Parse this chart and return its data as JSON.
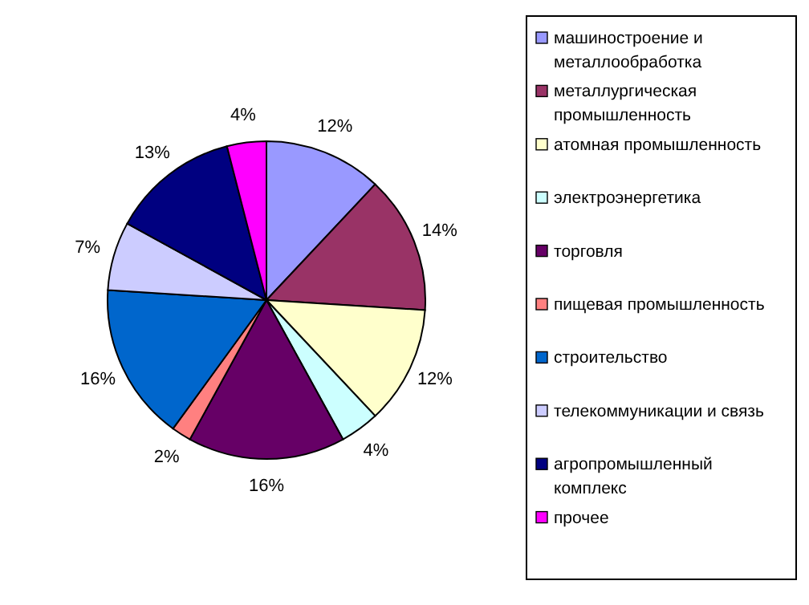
{
  "chart_data": {
    "type": "pie",
    "categories": [
      "машиностроение и металлообработка",
      "металлургическая промышленность",
      "атомная промышленность",
      "электроэнергетика",
      "торговля",
      "пищевая промышленность",
      "строительство",
      "телекоммуникации и связь",
      "агропромышленный комплекс",
      "прочее"
    ],
    "values": [
      12,
      14,
      12,
      4,
      16,
      2,
      16,
      7,
      13,
      4
    ],
    "colors": [
      "#9999ff",
      "#993366",
      "#ffffcc",
      "#ccffff",
      "#660066",
      "#ff8080",
      "#0066cc",
      "#ccccff",
      "#000080",
      "#ff00ff"
    ],
    "value_labels": [
      "12%",
      "14%",
      "12%",
      "4%",
      "16%",
      "2%",
      "16%",
      "7%",
      "13%",
      "4%"
    ],
    "legend": "right"
  }
}
